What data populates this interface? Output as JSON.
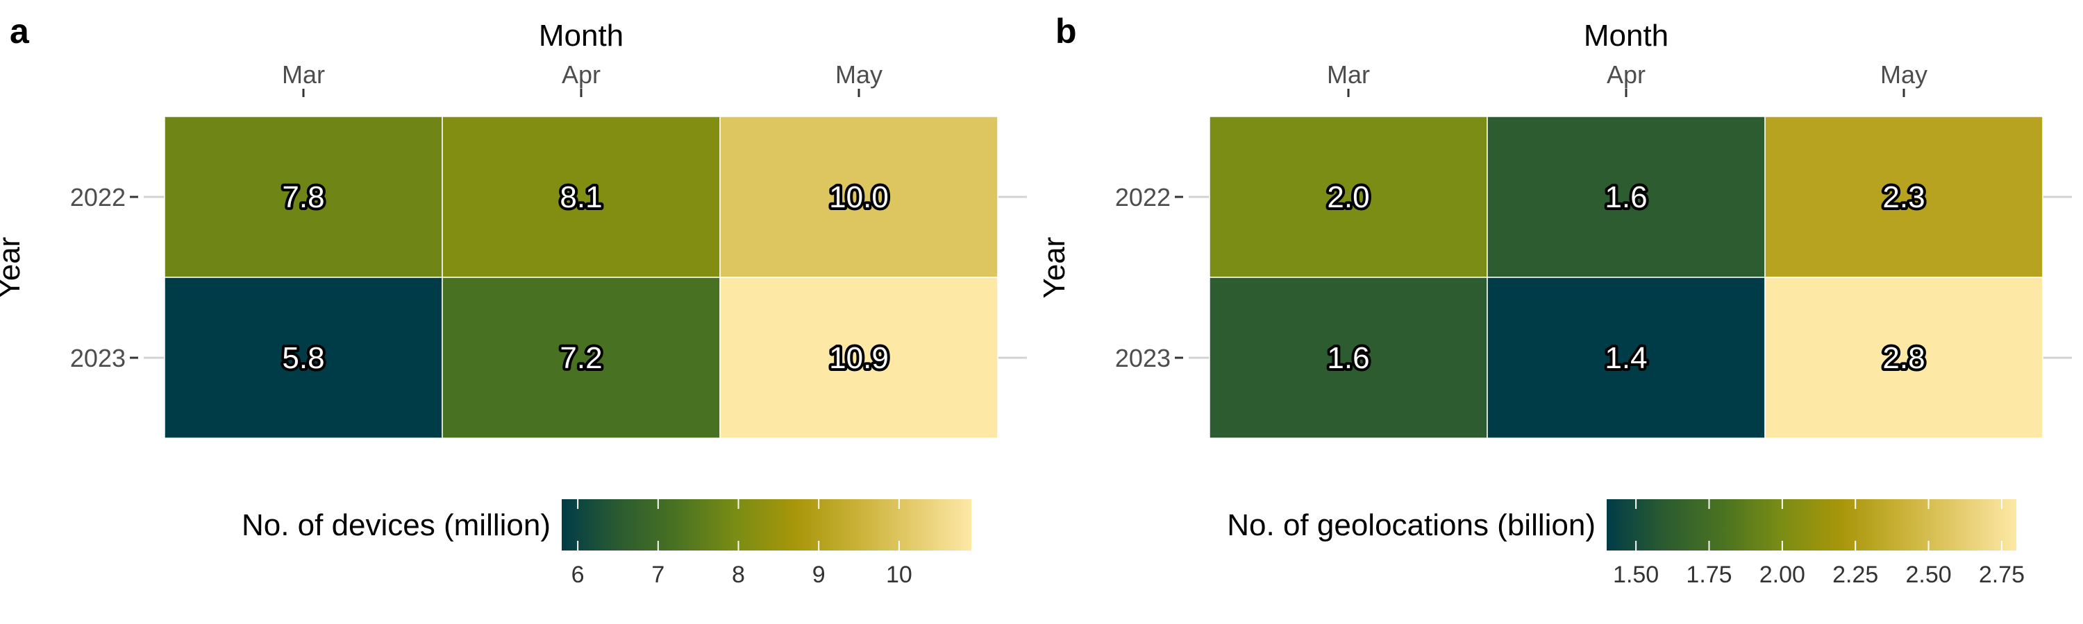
{
  "chart_data": [
    {
      "panel_label": "a",
      "type": "heatmap",
      "xlabel": "Month",
      "ylabel": "Year",
      "x": [
        "Mar",
        "Apr",
        "May"
      ],
      "y": [
        "2022",
        "2023"
      ],
      "values": [
        [
          7.8,
          8.1,
          10.0
        ],
        [
          5.8,
          7.2,
          10.9
        ]
      ],
      "cell_labels": [
        [
          "7.8",
          "8.1",
          "10.0"
        ],
        [
          "5.8",
          "7.2",
          "10.9"
        ]
      ],
      "legend": {
        "title": "No. of devices (million)",
        "ticks": [
          6,
          7,
          8,
          9,
          10
        ],
        "tick_labels": [
          "6",
          "7",
          "8",
          "9",
          "10"
        ],
        "range": [
          5.8,
          10.9
        ],
        "position": "bottom"
      },
      "colormap": [
        "#003c48",
        "#2c5c30",
        "#4b7321",
        "#7b8d14",
        "#a8960a",
        "#c8b035",
        "#e4cb6c",
        "#fde8a6"
      ]
    },
    {
      "panel_label": "b",
      "type": "heatmap",
      "xlabel": "Month",
      "ylabel": "Year",
      "x": [
        "Mar",
        "Apr",
        "May"
      ],
      "y": [
        "2022",
        "2023"
      ],
      "values": [
        [
          2.0,
          1.6,
          2.3
        ],
        [
          1.6,
          1.4,
          2.8
        ]
      ],
      "cell_labels": [
        [
          "2.0",
          "1.6",
          "2.3"
        ],
        [
          "1.6",
          "1.4",
          "2.8"
        ]
      ],
      "legend": {
        "title": "No. of geolocations (billion)",
        "ticks": [
          1.5,
          1.75,
          2.0,
          2.25,
          2.5,
          2.75
        ],
        "tick_labels": [
          "1.50",
          "1.75",
          "2.00",
          "2.25",
          "2.50",
          "2.75"
        ],
        "range": [
          1.4,
          2.8
        ],
        "position": "bottom"
      },
      "colormap": [
        "#003c48",
        "#2c5c30",
        "#4b7321",
        "#7b8d14",
        "#a8960a",
        "#c8b035",
        "#e4cb6c",
        "#fde8a6"
      ]
    }
  ]
}
